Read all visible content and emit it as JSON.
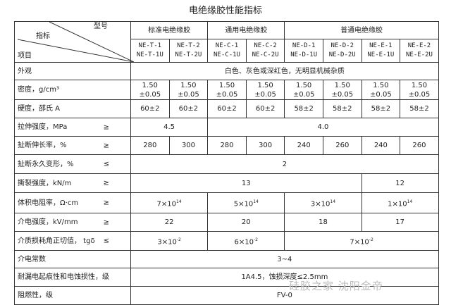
{
  "title": "电绝缘胶性能指标",
  "header": {
    "corner_top": "型号",
    "corner_mid": "指标",
    "corner_bottom": "项目",
    "groups": [
      "标准电绝缘胶",
      "通用电绝缘胶",
      "普通电绝缘胶"
    ],
    "models": [
      [
        "NE-T-1",
        "NE-T-1U"
      ],
      [
        "NE-T-2",
        "NE-T-2U"
      ],
      [
        "NE-C-1",
        "NE-C-1U"
      ],
      [
        "NE-C-2",
        "NE-C-2U"
      ],
      [
        "NE-D-1",
        "NE-D-1U"
      ],
      [
        "NE-D-2",
        "NE-D-2U"
      ],
      [
        "NE-E-1",
        "NE-E-1U"
      ],
      [
        "NE-E-2",
        "NE-E-2U"
      ]
    ]
  },
  "rows": [
    {
      "label": "外观",
      "op": "",
      "cells": [
        {
          "v": "白色、灰色或深红色，无明显机械杂质",
          "span": 8
        }
      ]
    },
    {
      "label": "密度，g/cm³",
      "op": "",
      "cells": [
        {
          "v": "1.50 ±0.05",
          "span": 1
        },
        {
          "v": "1.50 ±0.05",
          "span": 1
        },
        {
          "v": "1.50 ±0.05",
          "span": 1
        },
        {
          "v": "1.50 ±0.05",
          "span": 1
        },
        {
          "v": "1.50 ±0.05",
          "span": 1
        },
        {
          "v": "1.50 ±0.05",
          "span": 1
        },
        {
          "v": "1.50 ±0.05",
          "span": 1
        },
        {
          "v": "1.50 ±0.05",
          "span": 1
        }
      ]
    },
    {
      "label": "硬度，邵氏 A",
      "op": "",
      "cells": [
        {
          "v": "60±2",
          "span": 1
        },
        {
          "v": "60±2",
          "span": 1
        },
        {
          "v": "60±2",
          "span": 1
        },
        {
          "v": "60±2",
          "span": 1
        },
        {
          "v": "58±2",
          "span": 1
        },
        {
          "v": "58±2",
          "span": 1
        },
        {
          "v": "58±2",
          "span": 1
        },
        {
          "v": "58±2",
          "span": 1
        }
      ]
    },
    {
      "label": "拉伸强度，MPa",
      "op": "≥",
      "cells": [
        {
          "v": "4.5",
          "span": 2
        },
        {
          "v": "4.0",
          "span": 6
        }
      ]
    },
    {
      "label": "扯断伸长率，%",
      "op": "≥",
      "cells": [
        {
          "v": "280",
          "span": 1
        },
        {
          "v": "300",
          "span": 1
        },
        {
          "v": "280",
          "span": 1
        },
        {
          "v": "300",
          "span": 1
        },
        {
          "v": "240",
          "span": 1
        },
        {
          "v": "260",
          "span": 1
        },
        {
          "v": "240",
          "span": 1
        },
        {
          "v": "260",
          "span": 1
        }
      ]
    },
    {
      "label": "扯断永久变形，%",
      "op": "≤",
      "cells": [
        {
          "v": "2",
          "span": 8
        }
      ]
    },
    {
      "label": "撕裂强度，kN/m",
      "op": "≥",
      "cells": [
        {
          "v": "13",
          "span": 6
        },
        {
          "v": "12",
          "span": 2
        }
      ]
    },
    {
      "label": "体积电阻率，Ω·cm",
      "op": "≥",
      "cells": [
        {
          "v": "7×10",
          "sup": "14",
          "span": 2
        },
        {
          "v": "5×10",
          "sup": "14",
          "span": 2
        },
        {
          "v": "3×10",
          "sup": "14",
          "span": 2
        },
        {
          "v": "1×10",
          "sup": "14",
          "span": 2
        }
      ]
    },
    {
      "label": "介电强度，kV/mm",
      "op": "≥",
      "cells": [
        {
          "v": "22",
          "span": 2
        },
        {
          "v": "20",
          "span": 2
        },
        {
          "v": "18",
          "span": 2
        },
        {
          "v": "17",
          "span": 2
        }
      ]
    },
    {
      "label": "介质损耗角正切值， tgδ",
      "op": "≤",
      "cells": [
        {
          "v": "3×10",
          "sup": "-2",
          "span": 2
        },
        {
          "v": "6×10",
          "sup": "-2",
          "span": 2
        },
        {
          "v": "7×10",
          "sup": "-2",
          "span": 4
        }
      ]
    },
    {
      "label": "介电常数",
      "op": "",
      "cells": [
        {
          "v": "3~4",
          "span": 8
        }
      ]
    },
    {
      "label": "耐漏电起痕性和电蚀损性，级",
      "op": "",
      "cells": [
        {
          "v": "1A4.5，蚀损深度≤2.5mm",
          "span": 8
        }
      ]
    },
    {
      "label": "阻燃性，级",
      "op": "",
      "cells": [
        {
          "v": "FV-0",
          "span": 8
        }
      ]
    }
  ],
  "watermark": "硅胶之家  沈阳金帝"
}
